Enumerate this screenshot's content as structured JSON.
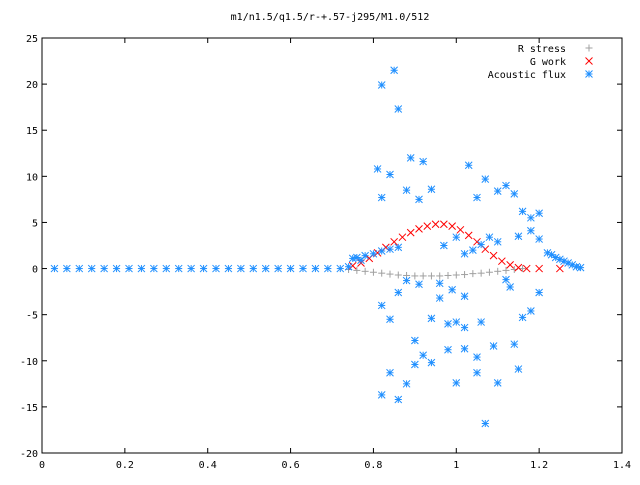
{
  "chart_data": {
    "type": "scatter",
    "title": "m1/n1.5/q1.5/r-+.57-j295/M1.0/512",
    "xlabel": "",
    "ylabel": "",
    "xlim": [
      0,
      1.4
    ],
    "ylim": [
      -20,
      25
    ],
    "x_ticks": [
      "0",
      "0.2",
      "0.4",
      "0.6",
      "0.8",
      "1",
      "1.2",
      "1.4"
    ],
    "y_ticks": [
      "25",
      "20",
      "15",
      "10",
      "5",
      "0",
      "-5",
      "-10",
      "-15",
      "-20"
    ],
    "grid": false,
    "legend_position": "top-right",
    "series": [
      {
        "name": "R stress",
        "marker": "+",
        "color": "#a0a0a0",
        "points": [
          [
            0.74,
            -0.1
          ],
          [
            0.76,
            -0.2
          ],
          [
            0.78,
            -0.3
          ],
          [
            0.8,
            -0.4
          ],
          [
            0.82,
            -0.5
          ],
          [
            0.84,
            -0.6
          ],
          [
            0.86,
            -0.7
          ],
          [
            0.88,
            -0.75
          ],
          [
            0.9,
            -0.8
          ],
          [
            0.92,
            -0.8
          ],
          [
            0.94,
            -0.8
          ],
          [
            0.96,
            -0.8
          ],
          [
            0.98,
            -0.75
          ],
          [
            1.0,
            -0.7
          ],
          [
            1.02,
            -0.65
          ],
          [
            1.04,
            -0.55
          ],
          [
            1.06,
            -0.5
          ],
          [
            1.08,
            -0.4
          ],
          [
            1.1,
            -0.3
          ],
          [
            1.12,
            -0.2
          ],
          [
            1.14,
            -0.1
          ],
          [
            1.16,
            0.0
          ]
        ]
      },
      {
        "name": "G work",
        "marker": "x",
        "color": "#ff0000",
        "points": [
          [
            0.75,
            0.3
          ],
          [
            0.77,
            0.6
          ],
          [
            0.79,
            1.1
          ],
          [
            0.81,
            1.7
          ],
          [
            0.83,
            2.3
          ],
          [
            0.85,
            2.9
          ],
          [
            0.87,
            3.4
          ],
          [
            0.89,
            3.9
          ],
          [
            0.91,
            4.3
          ],
          [
            0.93,
            4.6
          ],
          [
            0.95,
            4.8
          ],
          [
            0.97,
            4.8
          ],
          [
            0.99,
            4.6
          ],
          [
            1.01,
            4.2
          ],
          [
            1.03,
            3.6
          ],
          [
            1.05,
            2.9
          ],
          [
            1.07,
            2.1
          ],
          [
            1.09,
            1.4
          ],
          [
            1.11,
            0.8
          ],
          [
            1.13,
            0.4
          ],
          [
            1.15,
            0.1
          ],
          [
            1.17,
            0.0
          ],
          [
            1.2,
            0.0
          ],
          [
            1.25,
            0.0
          ]
        ]
      },
      {
        "name": "Acoustic flux",
        "marker": "*",
        "color": "#1f8fff",
        "points": [
          [
            0.03,
            0
          ],
          [
            0.06,
            0
          ],
          [
            0.09,
            0
          ],
          [
            0.12,
            0
          ],
          [
            0.15,
            0
          ],
          [
            0.18,
            0
          ],
          [
            0.21,
            0
          ],
          [
            0.24,
            0
          ],
          [
            0.27,
            0
          ],
          [
            0.3,
            0
          ],
          [
            0.33,
            0
          ],
          [
            0.36,
            0
          ],
          [
            0.39,
            0
          ],
          [
            0.42,
            0
          ],
          [
            0.45,
            0
          ],
          [
            0.48,
            0
          ],
          [
            0.51,
            0
          ],
          [
            0.54,
            0
          ],
          [
            0.57,
            0
          ],
          [
            0.6,
            0
          ],
          [
            0.63,
            0
          ],
          [
            0.66,
            0
          ],
          [
            0.69,
            0
          ],
          [
            0.72,
            0
          ],
          [
            0.74,
            0.2
          ],
          [
            0.75,
            1.1
          ],
          [
            0.76,
            1.2
          ],
          [
            0.77,
            0.9
          ],
          [
            0.78,
            1.4
          ],
          [
            0.8,
            1.6
          ],
          [
            0.82,
            1.9
          ],
          [
            0.84,
            2.1
          ],
          [
            0.86,
            2.3
          ],
          [
            0.82,
            19.9
          ],
          [
            0.85,
            21.5
          ],
          [
            0.86,
            17.3
          ],
          [
            0.81,
            10.8
          ],
          [
            0.84,
            10.2
          ],
          [
            0.89,
            12.0
          ],
          [
            0.92,
            11.6
          ],
          [
            0.82,
            7.7
          ],
          [
            0.88,
            8.5
          ],
          [
            0.91,
            7.5
          ],
          [
            0.94,
            8.6
          ],
          [
            0.82,
            -4.0
          ],
          [
            0.84,
            -5.5
          ],
          [
            0.86,
            -2.6
          ],
          [
            0.9,
            -7.8
          ],
          [
            0.94,
            -5.4
          ],
          [
            0.96,
            -3.2
          ],
          [
            0.98,
            -6.0
          ],
          [
            1.0,
            -5.8
          ],
          [
            1.02,
            -6.4
          ],
          [
            1.06,
            -5.8
          ],
          [
            0.92,
            -9.4
          ],
          [
            0.98,
            -8.8
          ],
          [
            1.02,
            -8.7
          ],
          [
            1.05,
            -9.6
          ],
          [
            1.09,
            -8.4
          ],
          [
            0.82,
            -13.7
          ],
          [
            0.84,
            -11.3
          ],
          [
            0.86,
            -14.2
          ],
          [
            0.88,
            -12.5
          ],
          [
            0.9,
            -10.4
          ],
          [
            0.94,
            -10.2
          ],
          [
            1.0,
            -12.4
          ],
          [
            1.05,
            -11.3
          ],
          [
            1.07,
            -16.8
          ],
          [
            1.1,
            -12.4
          ],
          [
            1.15,
            -10.9
          ],
          [
            1.14,
            -8.2
          ],
          [
            1.16,
            -5.3
          ],
          [
            1.18,
            -4.6
          ],
          [
            1.2,
            -2.6
          ],
          [
            0.97,
            2.5
          ],
          [
            1.0,
            3.4
          ],
          [
            1.02,
            1.6
          ],
          [
            1.04,
            2.0
          ],
          [
            1.06,
            2.6
          ],
          [
            1.08,
            3.4
          ],
          [
            1.1,
            2.9
          ],
          [
            1.03,
            11.2
          ],
          [
            1.05,
            7.7
          ],
          [
            1.07,
            9.7
          ],
          [
            1.1,
            8.4
          ],
          [
            1.12,
            9.0
          ],
          [
            1.14,
            8.1
          ],
          [
            1.16,
            6.2
          ],
          [
            1.18,
            5.5
          ],
          [
            1.2,
            6.0
          ],
          [
            1.15,
            3.5
          ],
          [
            1.18,
            4.1
          ],
          [
            1.2,
            3.2
          ],
          [
            1.22,
            1.7
          ],
          [
            1.23,
            1.5
          ],
          [
            1.24,
            1.2
          ],
          [
            1.25,
            1.0
          ],
          [
            1.26,
            0.8
          ],
          [
            1.27,
            0.6
          ],
          [
            1.28,
            0.4
          ],
          [
            1.29,
            0.2
          ],
          [
            1.3,
            0.1
          ],
          [
            0.96,
            -1.6
          ],
          [
            0.99,
            -2.3
          ],
          [
            1.02,
            -3.0
          ],
          [
            0.88,
            -1.3
          ],
          [
            0.91,
            -1.7
          ],
          [
            1.12,
            -1.2
          ],
          [
            1.13,
            -2.0
          ]
        ]
      }
    ]
  }
}
